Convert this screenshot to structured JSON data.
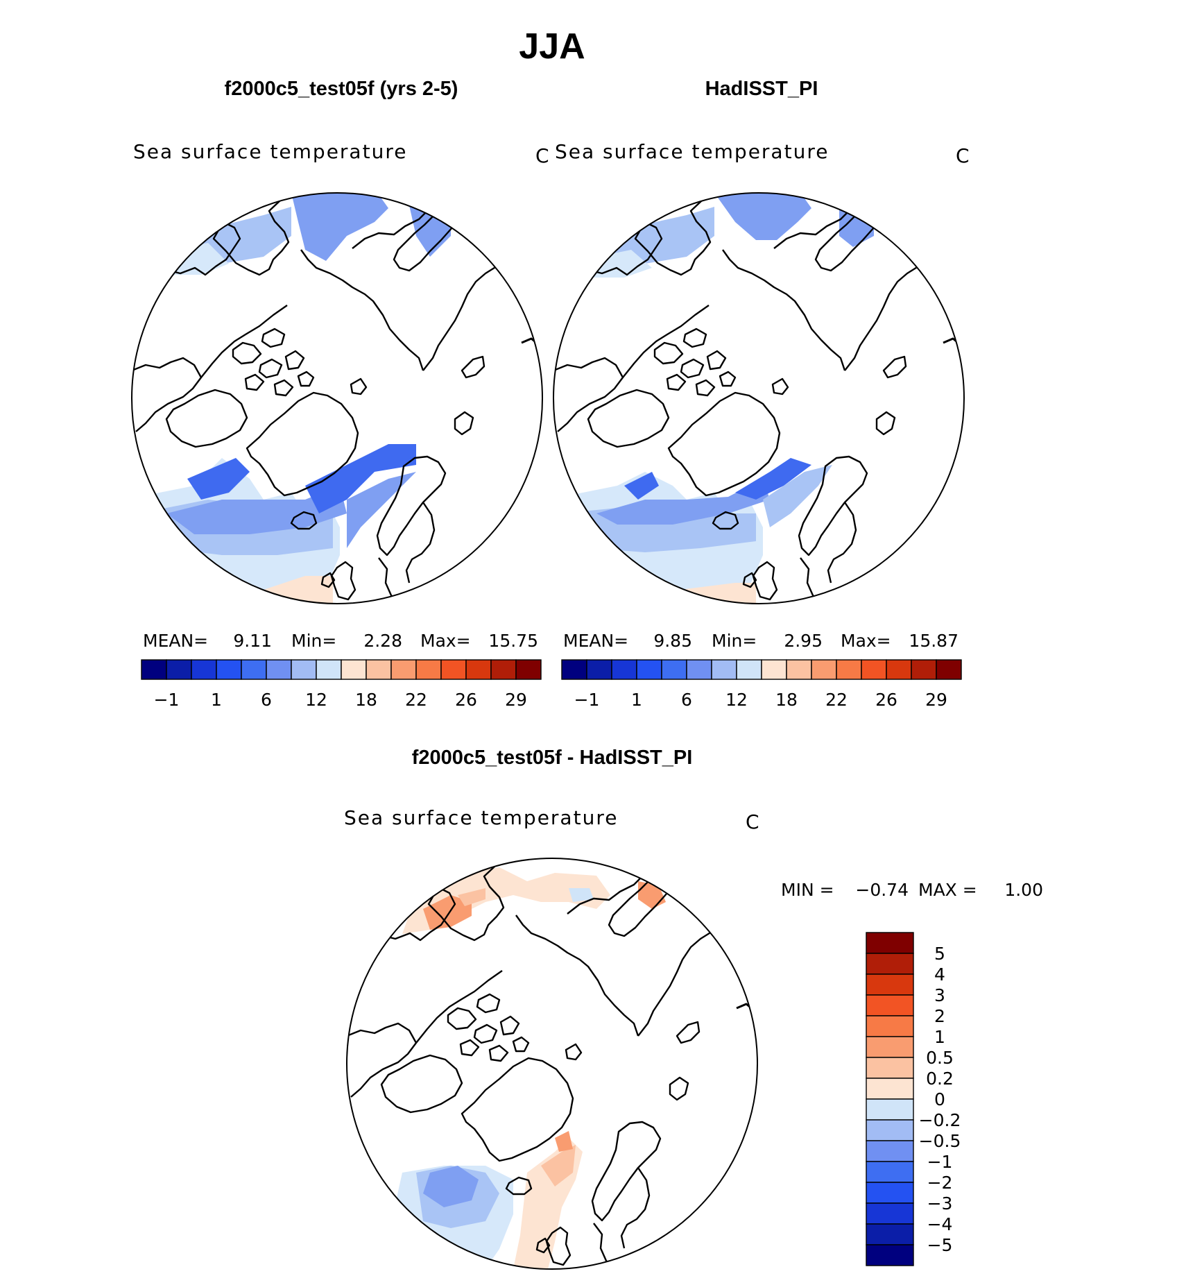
{
  "figure_title": "JJA",
  "panels": {
    "left": {
      "title": "f2000c5_test05f (yrs 2-5)",
      "variable": "Sea surface temperature",
      "units": "C",
      "stats": {
        "mean_label": "MEAN=",
        "mean": "9.11",
        "min_label": "Min=",
        "min": "2.28",
        "max_label": "Max=",
        "max": "15.75"
      }
    },
    "right": {
      "title": "HadISST_PI",
      "variable": "Sea surface temperature",
      "units": "C",
      "stats": {
        "mean_label": "MEAN=",
        "mean": "9.85",
        "min_label": "Min=",
        "min": "2.95",
        "max_label": "Max=",
        "max": "15.87"
      }
    },
    "diff": {
      "title": "f2000c5_test05f - HadISST_PI",
      "variable": "Sea surface temperature",
      "units": "C",
      "stats": {
        "min_label": "MIN =",
        "min": "−0.74",
        "max_label": "MAX =",
        "max": "1.00"
      }
    }
  },
  "colorbar_main": {
    "colors": [
      "#00007f",
      "#0b1ea8",
      "#1736d6",
      "#2452f2",
      "#3e6ef2",
      "#7090f2",
      "#a2bcf4",
      "#d0e4f8",
      "#fde4d2",
      "#fbc2a2",
      "#f99c70",
      "#f77a46",
      "#f25424",
      "#d8380e",
      "#b01e08",
      "#7f0000"
    ],
    "tick_labels": [
      "−1",
      "1",
      "6",
      "12",
      "18",
      "22",
      "26",
      "29"
    ]
  },
  "colorbar_diff": {
    "colors_top_to_bottom": [
      "#7f0000",
      "#b01e08",
      "#d8380e",
      "#f25424",
      "#f77a46",
      "#f99c70",
      "#fbc2a2",
      "#fde4d2",
      "#d0e4f8",
      "#a2bcf4",
      "#7090f2",
      "#3e6ef2",
      "#2452f2",
      "#1736d6",
      "#0b1ea8",
      "#00007f"
    ],
    "tick_labels_top_to_bottom": [
      "5",
      "4",
      "3",
      "2",
      "1",
      "0.5",
      "0.2",
      "0",
      "−0.2",
      "−0.5",
      "−1",
      "−2",
      "−3",
      "−4",
      "−5"
    ]
  }
}
